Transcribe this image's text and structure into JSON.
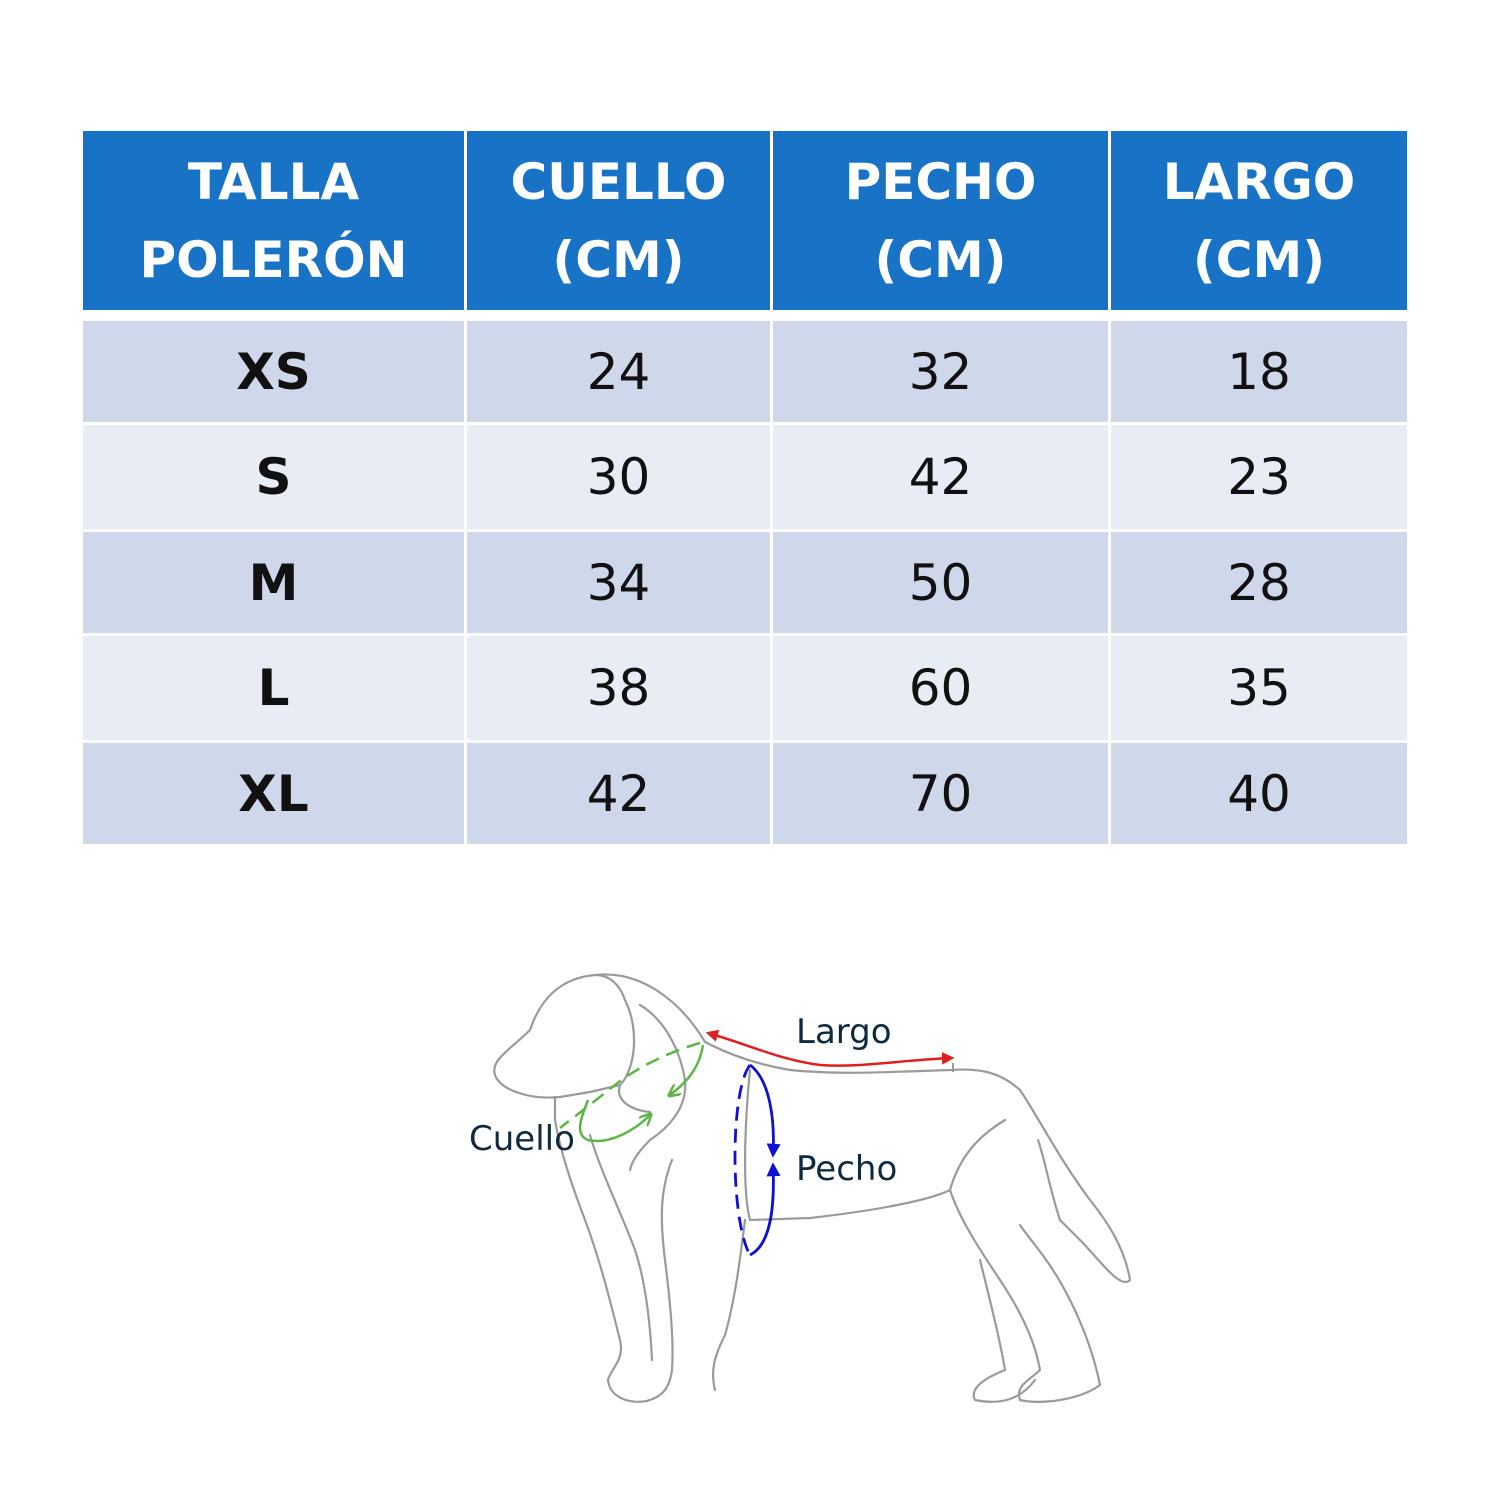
{
  "table": {
    "headers": [
      {
        "line1": "TALLA",
        "line2": "POLERÓN"
      },
      {
        "line1": "CUELLO",
        "line2": "(CM)"
      },
      {
        "line1": "PECHO",
        "line2": "(CM)"
      },
      {
        "line1": "LARGO",
        "line2": "(CM)"
      }
    ],
    "rows": [
      [
        "XS",
        "24",
        "32",
        "18"
      ],
      [
        "S",
        "30",
        "42",
        "23"
      ],
      [
        "M",
        "34",
        "50",
        "28"
      ],
      [
        "L",
        "38",
        "60",
        "35"
      ],
      [
        "XL",
        "42",
        "70",
        "40"
      ]
    ]
  },
  "diagram": {
    "labels": {
      "largo": "Largo",
      "cuello": "Cuello",
      "pecho": "Pecho"
    },
    "colors": {
      "header": "#1873C7",
      "largo": "#E02020",
      "cuello": "#5DB548",
      "pecho": "#1010D0",
      "outline": "#9a9a9a"
    }
  }
}
